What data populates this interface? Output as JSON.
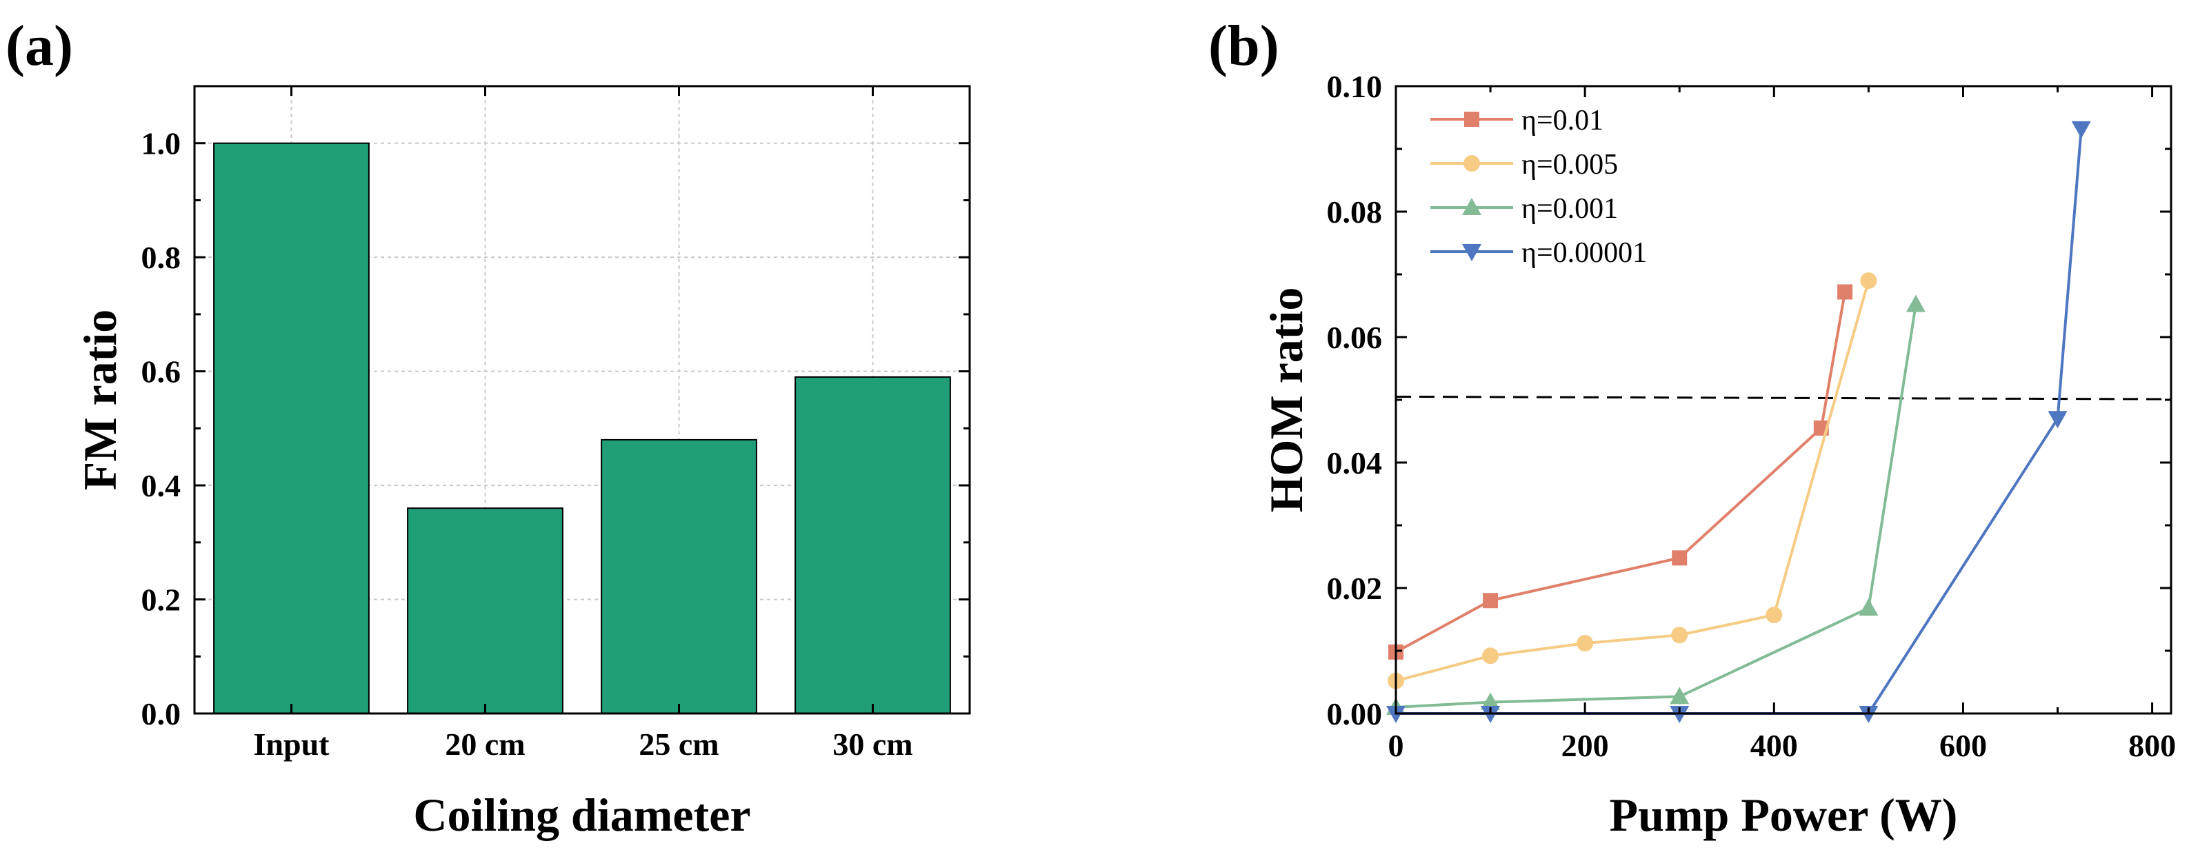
{
  "colors": {
    "bar_fill": "#1f9e78",
    "eta_001": "#e0806a",
    "eta_0005": "#f6cc85",
    "eta_0001": "#82bb96",
    "eta_000001": "#4f76c0"
  },
  "chart_data": [
    {
      "type": "bar",
      "panel_label": "(a)",
      "title": "",
      "xlabel": "Coiling diameter",
      "ylabel": "FM ratio",
      "categories": [
        "Input",
        "20 cm",
        "25 cm",
        "30 cm"
      ],
      "values": [
        1.0,
        0.36,
        0.48,
        0.59
      ],
      "ylim": [
        0,
        1.1
      ],
      "yticks": [
        0.0,
        0.2,
        0.4,
        0.6,
        0.8,
        1.0
      ],
      "ytick_labels": [
        "0.0",
        "0.2",
        "0.4",
        "0.6",
        "0.8",
        "1.0"
      ],
      "grid": true,
      "bar_color": "#1f9e78"
    },
    {
      "type": "line",
      "panel_label": "(b)",
      "title": "",
      "xlabel": "Pump Power (W)",
      "ylabel": "HOM ratio",
      "xlim": [
        0,
        820
      ],
      "ylim": [
        0,
        0.1
      ],
      "xticks": [
        0,
        200,
        400,
        600,
        800
      ],
      "xtick_labels": [
        "0",
        "200",
        "400",
        "600",
        "800"
      ],
      "yticks": [
        0.0,
        0.02,
        0.04,
        0.06,
        0.08,
        0.1
      ],
      "ytick_labels": [
        "0.00",
        "0.02",
        "0.04",
        "0.06",
        "0.08",
        "0.10"
      ],
      "legend_position": "top-left",
      "reference_line": {
        "style": "dashed",
        "y": [
          0.0505,
          0.0501
        ]
      },
      "series": [
        {
          "name": "η=0.01",
          "marker": "square",
          "color": "#e0806a",
          "x": [
            0,
            100,
            300,
            450,
            475
          ],
          "y": [
            0.0098,
            0.018,
            0.0248,
            0.0455,
            0.0672
          ]
        },
        {
          "name": "η=0.005",
          "marker": "circle",
          "color": "#f6cc85",
          "x": [
            0,
            100,
            200,
            300,
            400,
            500
          ],
          "y": [
            0.0052,
            0.0092,
            0.0112,
            0.0125,
            0.0157,
            0.069
          ]
        },
        {
          "name": "η=0.001",
          "marker": "triangle-up",
          "color": "#82bb96",
          "x": [
            0,
            100,
            300,
            500,
            550
          ],
          "y": [
            0.001,
            0.0018,
            0.0027,
            0.0168,
            0.0652
          ]
        },
        {
          "name": "η=0.00001",
          "marker": "triangle-down",
          "color": "#4f76c0",
          "x": [
            0,
            100,
            300,
            500,
            700,
            725
          ],
          "y": [
            0.0,
            0.0,
            0.0,
            0.0,
            0.047,
            0.0932
          ]
        }
      ]
    }
  ]
}
